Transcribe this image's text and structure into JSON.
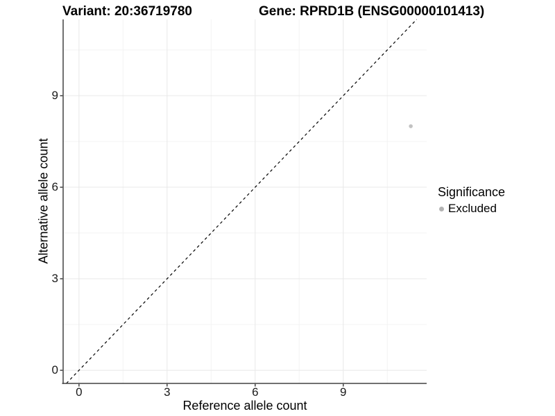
{
  "header": {
    "variant_title": "Variant: 20:36719780",
    "gene_title": "Gene: RPRD1B (ENSG00000101413)"
  },
  "axes": {
    "x": {
      "label": "Reference allele count",
      "ticks": [
        "0",
        "3",
        "6",
        "9"
      ]
    },
    "y": {
      "label": "Alternative allele count",
      "ticks": [
        "0",
        "3",
        "6",
        "9"
      ]
    }
  },
  "legend": {
    "title": "Significance",
    "position": "right",
    "items": [
      {
        "label": "Excluded",
        "color": "#b3b3b3"
      }
    ]
  },
  "colors": {
    "point": "#c2c2c2",
    "legend_dot": "#b3b3b3",
    "grid_major": "#e8e8e8",
    "grid_minor": "#f3f3f3",
    "axis_line": "#404040",
    "tick_mark": "#404040",
    "identity_line": "#000000",
    "background": "#ffffff"
  },
  "chart_data": {
    "type": "scatter",
    "title": "Variant: 20:36719780  |  Gene: RPRD1B (ENSG00000101413)",
    "xlabel": "Reference allele count",
    "ylabel": "Alternative allele count",
    "x_ticks": [
      0,
      3,
      6,
      9
    ],
    "y_ticks": [
      0,
      3,
      6,
      9
    ],
    "x_minor_ticks": [
      1.5,
      4.5,
      7.5,
      10.5
    ],
    "y_minor_ticks": [
      1.5,
      4.5,
      7.5,
      10.5
    ],
    "xlim": [
      -0.54,
      11.84
    ],
    "ylim": [
      -0.43,
      11.5
    ],
    "grid": true,
    "legend_position": "right",
    "series": [
      {
        "name": "Excluded",
        "points": [
          {
            "x": 11.3,
            "y": 8
          }
        ],
        "point_radius": 2.8
      }
    ],
    "identity_line": {
      "x1": -0.43,
      "y1": -0.43,
      "x2": 11.5,
      "y2": 11.5,
      "style": "dashed"
    }
  }
}
